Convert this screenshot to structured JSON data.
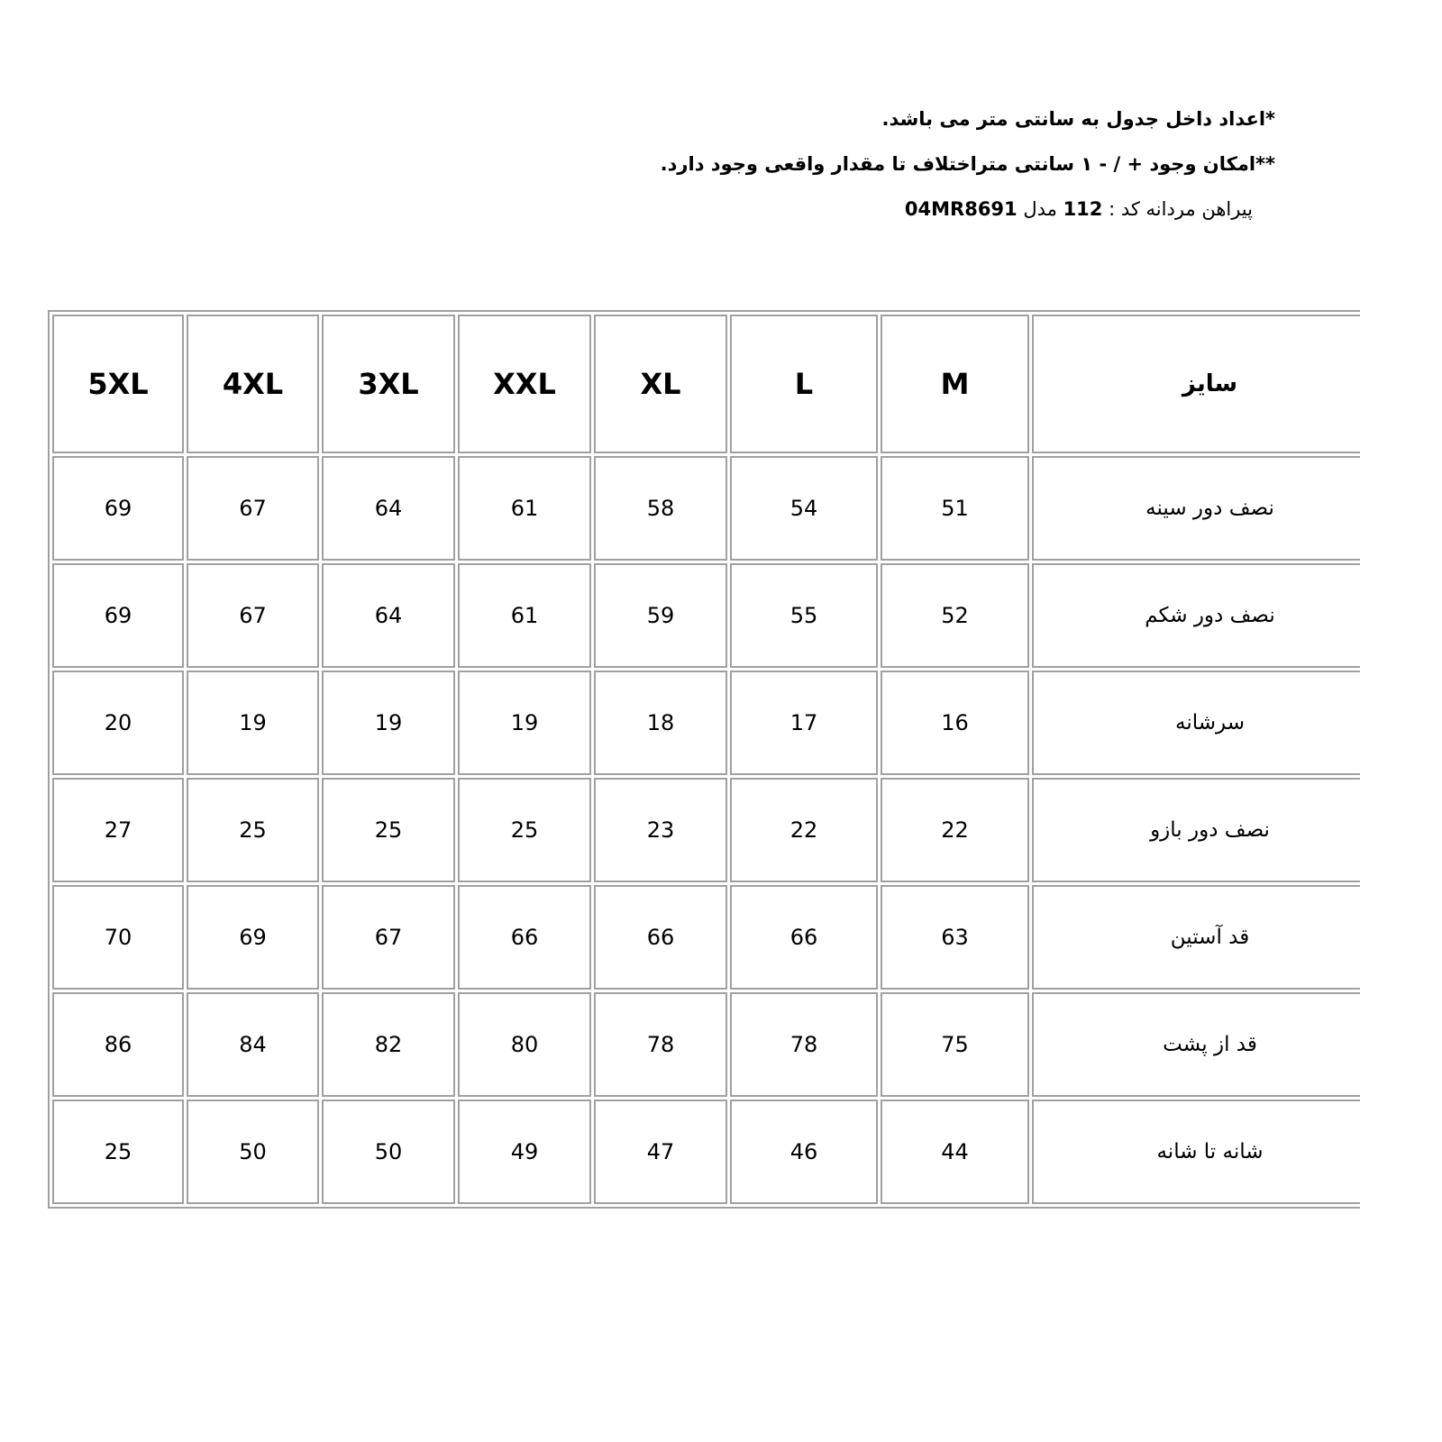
{
  "notes": {
    "line1": "*اعداد داخل جدول به سانتی متر می باشد.",
    "line2": "**امکان وجود + / - ۱ سانتی متراختلاف تا مقدار واقعی وجود دارد.",
    "line3_prefix": "پیراهن مردانه  کد : ",
    "code": "112",
    "model_label": " مدل ",
    "model": "04MR8691"
  },
  "table": {
    "header_label": "سایز",
    "sizes": [
      "5XL",
      "4XL",
      "3XL",
      "XXL",
      "XL",
      "L",
      "M"
    ],
    "rows": [
      {
        "label": "نصف دور سینه",
        "values": [
          "69",
          "67",
          "64",
          "61",
          "58",
          "54",
          "51"
        ]
      },
      {
        "label": "نصف دور شکم",
        "values": [
          "69",
          "67",
          "64",
          "61",
          "59",
          "55",
          "52"
        ]
      },
      {
        "label": "سرشانه",
        "values": [
          "20",
          "19",
          "19",
          "19",
          "18",
          "17",
          "16"
        ]
      },
      {
        "label": "نصف دور بازو",
        "values": [
          "27",
          "25",
          "25",
          "25",
          "23",
          "22",
          "22"
        ]
      },
      {
        "label": "قد آستین",
        "values": [
          "70",
          "69",
          "67",
          "66",
          "66",
          "66",
          "63"
        ]
      },
      {
        "label": "قد از پشت",
        "values": [
          "86",
          "84",
          "82",
          "80",
          "78",
          "78",
          "75"
        ]
      },
      {
        "label": "شانه تا شانه",
        "values": [
          "25",
          "50",
          "50",
          "49",
          "47",
          "46",
          "44"
        ]
      }
    ]
  }
}
